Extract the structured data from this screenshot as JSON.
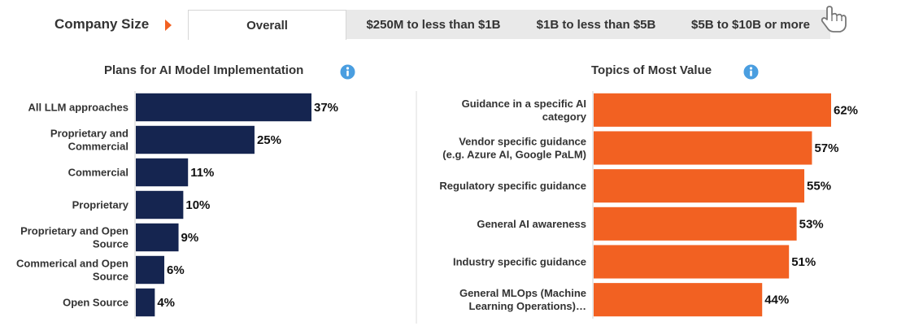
{
  "filter": {
    "label": "Company Size",
    "tabs": [
      {
        "label": "Overall",
        "active": true
      },
      {
        "label": "$250M to less than $1B",
        "active": false
      },
      {
        "label": "$1B to less than $5B",
        "active": false
      },
      {
        "label": "$5B to $10B or more",
        "active": false
      }
    ]
  },
  "colors": {
    "left_bar": "#152550",
    "right_bar": "#f26122",
    "accent": "#f26122",
    "info": "#4a9ee0"
  },
  "chart_data": [
    {
      "type": "bar",
      "orientation": "horizontal",
      "title": "Plans for AI Model Implementation",
      "categories": [
        [
          "All LLM approaches"
        ],
        [
          "Proprietary and",
          "Commercial"
        ],
        [
          "Commercial"
        ],
        [
          "Proprietary"
        ],
        [
          "Proprietary and Open",
          "Source"
        ],
        [
          "Commerical and Open",
          "Source"
        ],
        [
          "Open Source"
        ]
      ],
      "values": [
        37,
        25,
        11,
        10,
        9,
        6,
        4
      ],
      "value_labels": [
        "37%",
        "25%",
        "11%",
        "10%",
        "9%",
        "6%",
        "4%"
      ],
      "xlim": [
        0,
        100
      ],
      "grid": false
    },
    {
      "type": "bar",
      "orientation": "horizontal",
      "title": "Topics of Most Value",
      "categories": [
        [
          "Guidance in a specific AI",
          "category"
        ],
        [
          "Vendor specific guidance",
          "(e.g. Azure AI, Google PaLM)"
        ],
        [
          "Regulatory specific guidance"
        ],
        [
          "General AI awareness"
        ],
        [
          "Industry specific guidance"
        ],
        [
          "General MLOps (Machine",
          "Learning Operations)…"
        ]
      ],
      "values": [
        62,
        57,
        55,
        53,
        51,
        44
      ],
      "value_labels": [
        "62%",
        "57%",
        "55%",
        "53%",
        "51%",
        "44%"
      ],
      "xlim": [
        0,
        100
      ],
      "grid": false
    }
  ]
}
